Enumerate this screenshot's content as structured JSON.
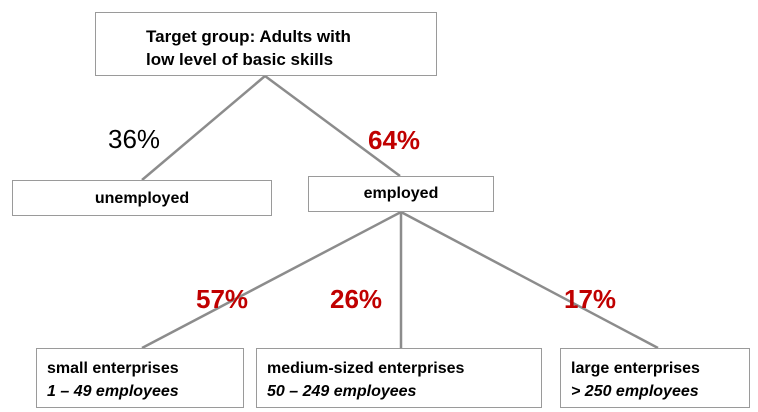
{
  "root": {
    "line1": "Target group: Adults with",
    "line2": "low level of basic skills"
  },
  "level1": {
    "unemployed": {
      "label": "unemployed",
      "percent": "36%"
    },
    "employed": {
      "label": "employed",
      "percent": "64%"
    }
  },
  "level2": {
    "small": {
      "label": "small enterprises",
      "range": "1 – 49 employees",
      "percent": "57%"
    },
    "medium": {
      "label": "medium-sized enterprises",
      "range": "50 – 249 employees",
      "percent": "26%"
    },
    "large": {
      "label": "large enterprises",
      "range": "> 250 employees",
      "percent": "17%"
    }
  },
  "colors": {
    "highlight_percent": "#c00000",
    "plain_percent": "#000000",
    "connector": "#8c8c8c",
    "box_border": "#9a9a9a"
  }
}
